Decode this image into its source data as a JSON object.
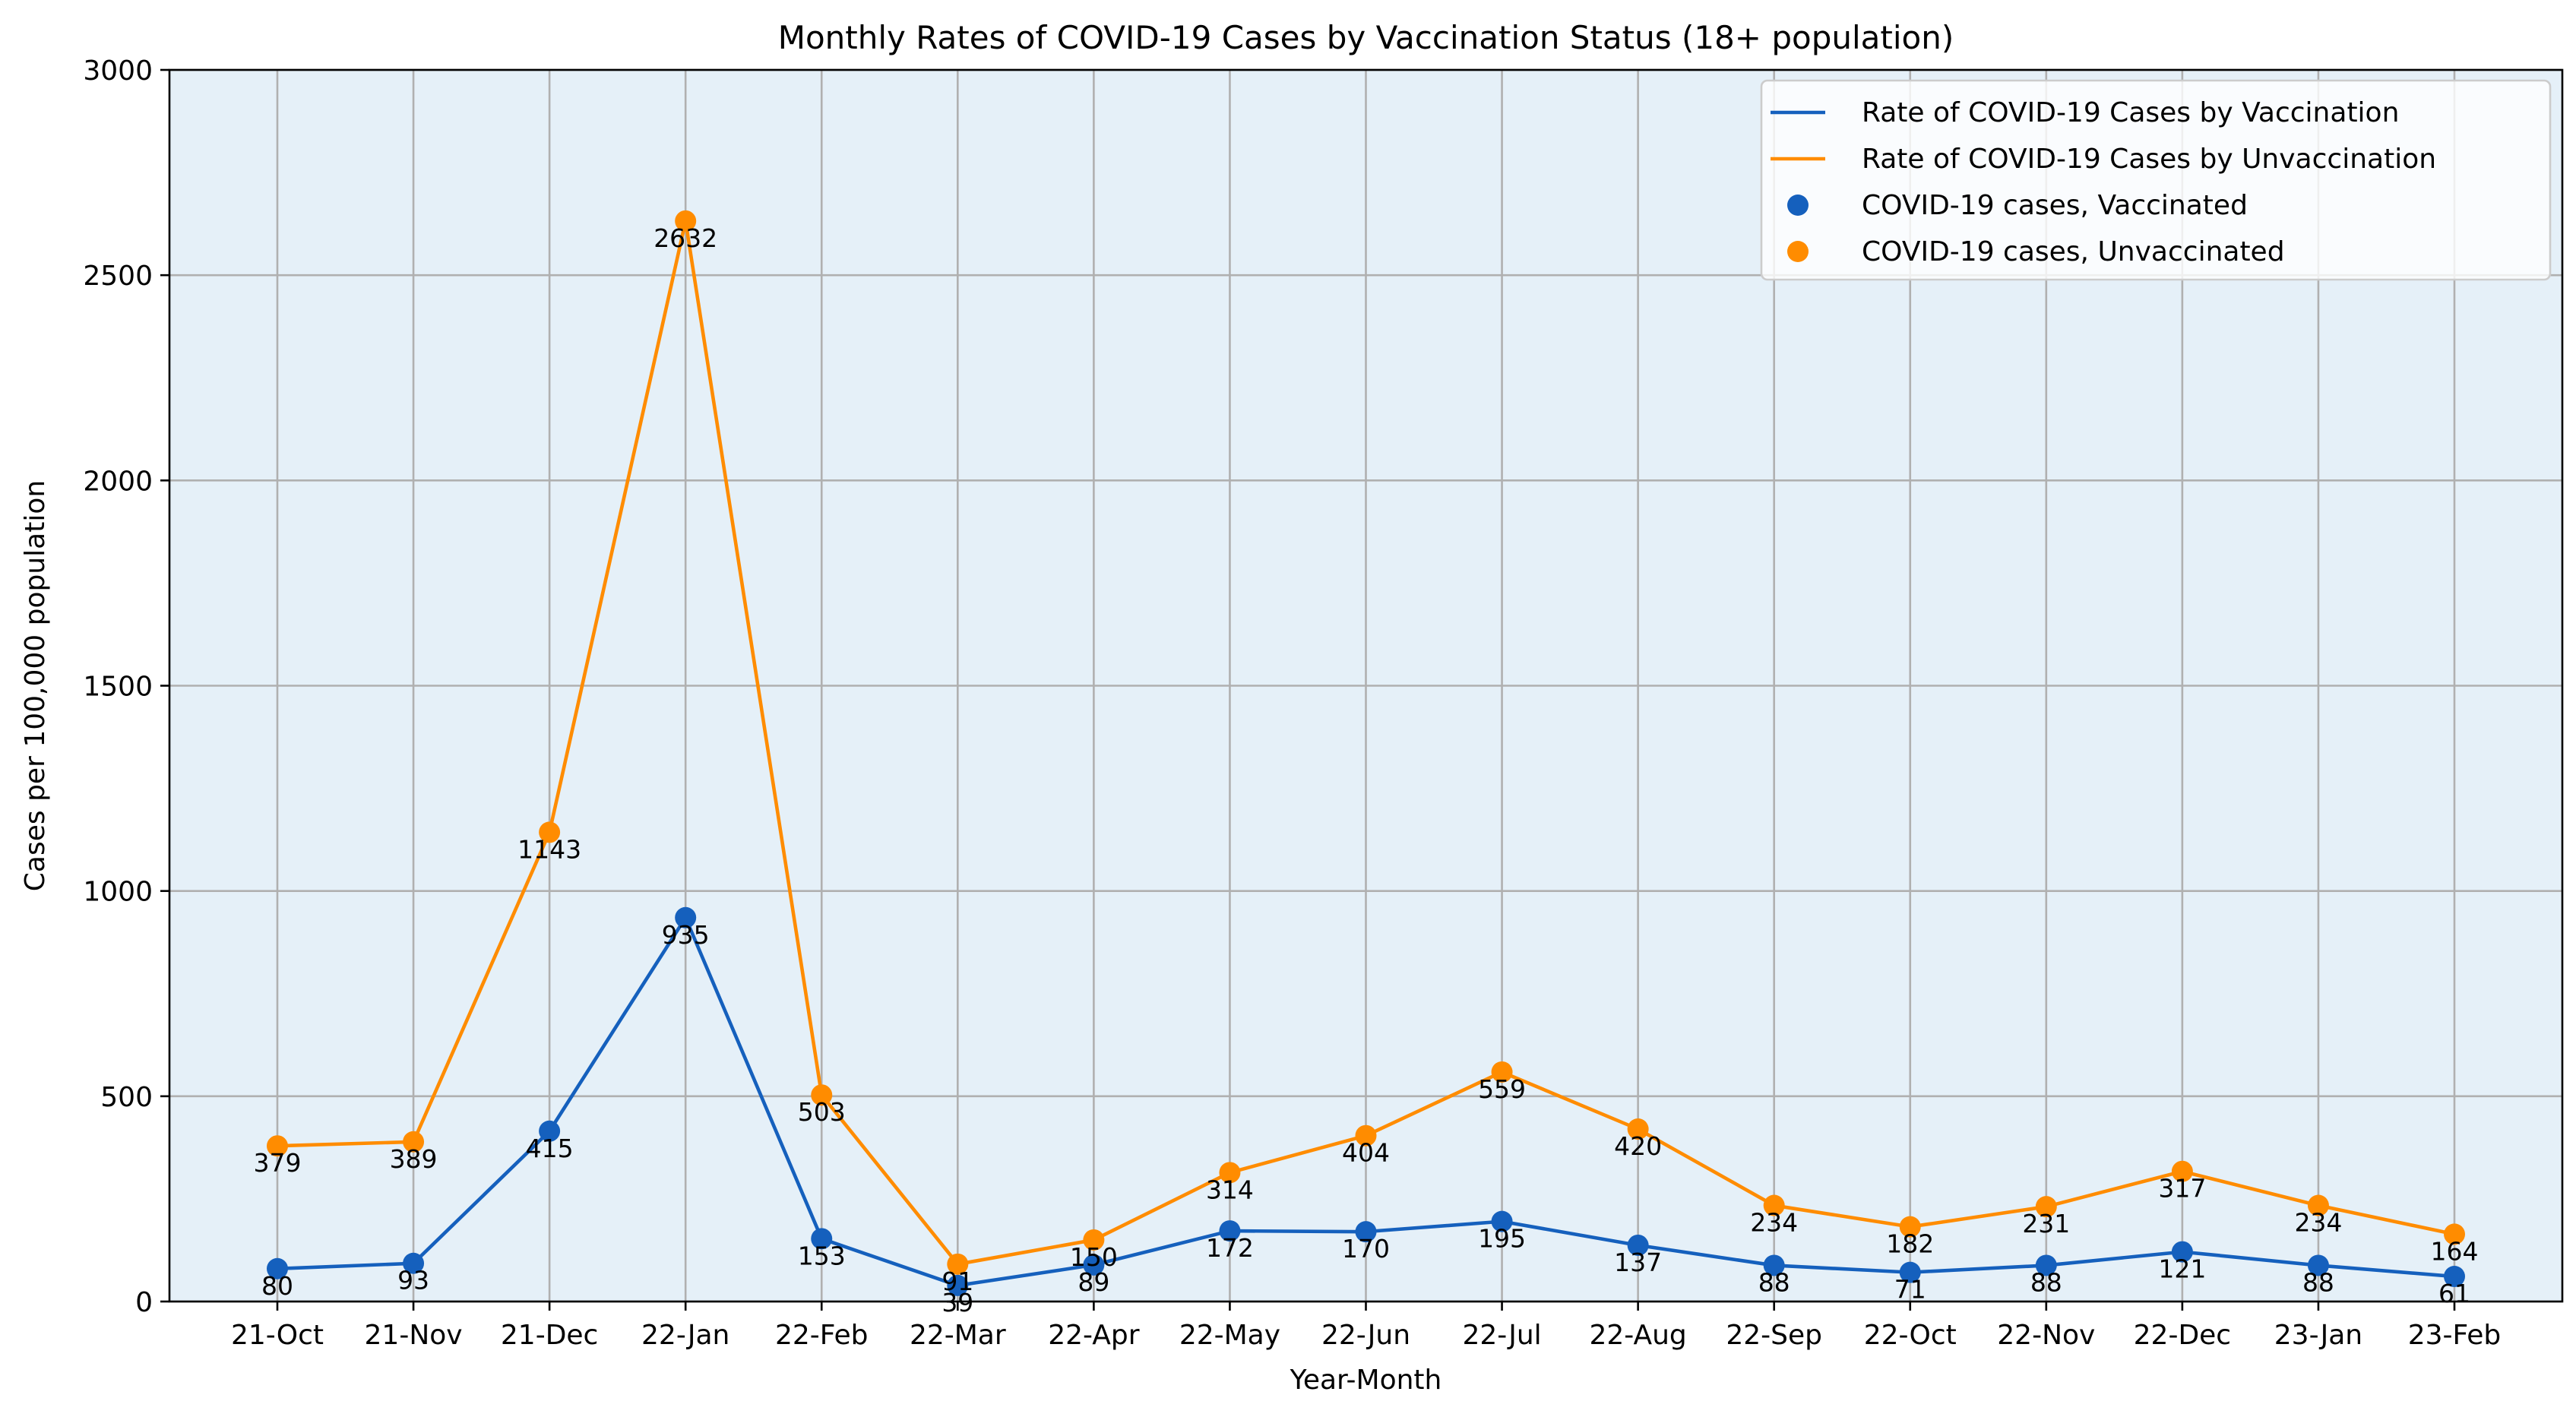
{
  "chart_data": {
    "type": "line",
    "title": "Monthly Rates of COVID-19 Cases by Vaccination Status (18+ population)",
    "xlabel": "Year-Month",
    "ylabel": "Cases per 100,000 population",
    "categories": [
      "21-Oct",
      "21-Nov",
      "21-Dec",
      "22-Jan",
      "22-Feb",
      "22-Mar",
      "22-Apr",
      "22-May",
      "22-Jun",
      "22-Jul",
      "22-Aug",
      "22-Sep",
      "22-Oct",
      "22-Nov",
      "22-Dec",
      "23-Jan",
      "23-Feb"
    ],
    "ylim": [
      0,
      3000
    ],
    "yticks": [
      0,
      500,
      1000,
      1500,
      2000,
      2500,
      3000
    ],
    "grid": true,
    "legend_position": "top-right",
    "background_color": "#e5f0f8",
    "series": [
      {
        "line_name": "Rate of COVID-19 Cases by Vaccination",
        "point_name": "COVID-19 cases, Vaccinated",
        "color": "#1560bd",
        "values": [
          80,
          93,
          415,
          935,
          153,
          39,
          89,
          172,
          170,
          195,
          137,
          88,
          71,
          88,
          121,
          88,
          61
        ]
      },
      {
        "line_name": "Rate of COVID-19 Cases by Unvaccination",
        "point_name": "COVID-19 cases, Unvaccinated",
        "color": "#ff8c00",
        "values": [
          379,
          389,
          1143,
          2632,
          503,
          91,
          150,
          314,
          404,
          559,
          420,
          234,
          182,
          231,
          317,
          234,
          164
        ]
      }
    ]
  }
}
